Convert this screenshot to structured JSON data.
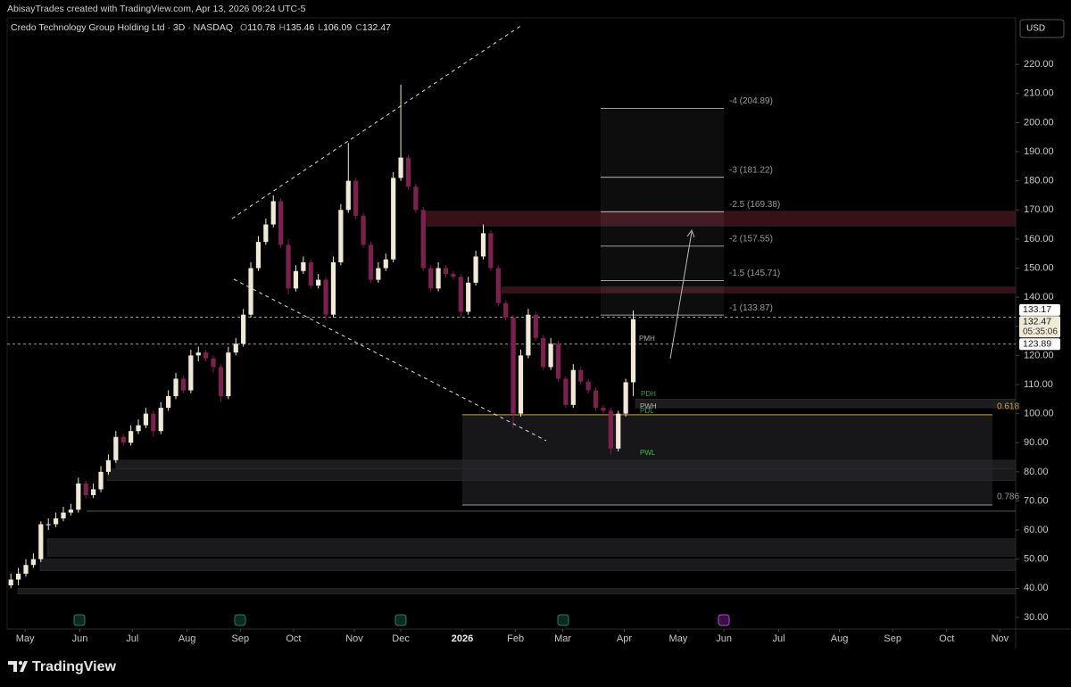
{
  "header": "AbisayTrades created with TradingView.com, Apr 13, 2026 09:24 UTC-5",
  "currency": "USD",
  "brand": "TradingView",
  "chart_data": {
    "type": "candlestick",
    "title": "Credo Technology Group Holding Ltd · 3D · NASDAQ",
    "legend": [
      {
        "label": "O",
        "value": 110.78
      },
      {
        "label": "H",
        "value": 135.46
      },
      {
        "label": "L",
        "value": 106.09
      },
      {
        "label": "C",
        "value": 132.47
      }
    ],
    "up_color": "#efe9d6",
    "down_color": "#7e1f4d",
    "open": [
      41,
      43,
      45,
      48,
      50,
      62,
      62,
      64,
      66,
      67,
      76,
      72,
      74,
      80,
      84,
      92,
      90,
      94,
      96,
      100,
      94,
      102,
      106,
      112,
      108,
      120,
      121,
      119,
      116,
      106,
      121,
      124,
      134,
      150,
      159,
      165,
      173,
      158,
      143,
      149,
      152,
      144,
      146,
      134,
      152,
      170,
      180,
      168,
      158,
      146,
      150,
      153,
      181,
      188,
      178,
      170,
      150,
      143,
      150,
      148,
      147,
      135,
      145,
      154,
      162,
      150,
      138,
      133,
      100,
      120,
      134,
      126,
      116,
      124,
      112,
      103,
      115,
      111,
      108,
      102,
      101,
      88,
      100,
      110.78
    ],
    "high": [
      45,
      47,
      50,
      52,
      63,
      64,
      66,
      68,
      69,
      78,
      77,
      76,
      82,
      86,
      94,
      93,
      96,
      98,
      102,
      101,
      104,
      108,
      114,
      113,
      122,
      123,
      122,
      120,
      117,
      123,
      126,
      136,
      152,
      161,
      167,
      175,
      174,
      160,
      151,
      154,
      153,
      148,
      147,
      154,
      172,
      193,
      181,
      169,
      159,
      152,
      155,
      183,
      213,
      189,
      179,
      171,
      151,
      152,
      151,
      149,
      148,
      147,
      156,
      165,
      163,
      151,
      139,
      134,
      122,
      136,
      135,
      127,
      126,
      125,
      113,
      117,
      116,
      112,
      109,
      103,
      102,
      101,
      112,
      135.46
    ],
    "low": [
      40,
      41,
      44,
      47,
      49,
      60,
      61,
      63,
      65,
      66,
      71,
      71,
      73,
      79,
      83,
      89,
      89,
      93,
      95,
      92,
      93,
      101,
      105,
      107,
      107,
      118,
      118,
      114,
      104,
      105,
      120,
      123,
      133,
      149,
      158,
      164,
      157,
      141,
      142,
      148,
      143,
      143,
      132,
      133,
      151,
      169,
      167,
      157,
      145,
      145,
      149,
      152,
      180,
      177,
      169,
      149,
      142,
      142,
      147,
      146,
      133,
      134,
      144,
      153,
      149,
      137,
      132,
      95,
      99,
      119,
      125,
      115,
      115,
      111,
      102,
      102,
      110,
      107,
      101,
      100,
      86,
      87,
      99,
      106.09
    ],
    "close": [
      43,
      45,
      48,
      50,
      62,
      62,
      64,
      66,
      67,
      76,
      72,
      74,
      80,
      84,
      92,
      90,
      94,
      96,
      100,
      94,
      102,
      106,
      112,
      108,
      120,
      121,
      119,
      116,
      106,
      121,
      124,
      134,
      150,
      159,
      165,
      173,
      158,
      143,
      149,
      152,
      144,
      146,
      134,
      152,
      170,
      180,
      168,
      158,
      146,
      150,
      153,
      181,
      188,
      178,
      170,
      150,
      143,
      150,
      148,
      147,
      135,
      145,
      154,
      162,
      150,
      138,
      133,
      100,
      120,
      134,
      126,
      116,
      124,
      112,
      103,
      115,
      111,
      108,
      102,
      101,
      88,
      100,
      110.78,
      132.47
    ],
    "xlim": [
      -0.5,
      134
    ],
    "xticks": [
      {
        "value": 1.9,
        "label": "May"
      },
      {
        "value": 9.2,
        "label": "Jun"
      },
      {
        "value": 16.2,
        "label": "Jul"
      },
      {
        "value": 23.5,
        "label": "Aug"
      },
      {
        "value": 30.6,
        "label": "Sep"
      },
      {
        "value": 37.7,
        "label": "Oct"
      },
      {
        "value": 45.8,
        "label": "Nov"
      },
      {
        "value": 52,
        "label": "Dec"
      },
      {
        "value": 60.2,
        "label": "2026"
      },
      {
        "value": 67.3,
        "label": "Feb"
      },
      {
        "value": 73.6,
        "label": "Mar"
      },
      {
        "value": 81.8,
        "label": "Apr"
      },
      {
        "value": 89,
        "label": "May"
      },
      {
        "value": 95.1,
        "label": "Jun"
      },
      {
        "value": 102.4,
        "label": "Jul"
      },
      {
        "value": 110.5,
        "label": "Aug"
      },
      {
        "value": 117.6,
        "label": "Sep"
      },
      {
        "value": 124.8,
        "label": "Oct"
      },
      {
        "value": 131.9,
        "label": "Nov"
      }
    ],
    "ylim": [
      26,
      236
    ],
    "yticks": [
      {
        "value": 30,
        "label": "30.00"
      },
      {
        "value": 40,
        "label": "40.00"
      },
      {
        "value": 50,
        "label": "50.00"
      },
      {
        "value": 60,
        "label": "60.00"
      },
      {
        "value": 70,
        "label": "70.00"
      },
      {
        "value": 80,
        "label": "80.00"
      },
      {
        "value": 90,
        "label": "90.00"
      },
      {
        "value": 100,
        "label": "100.00"
      },
      {
        "value": 110,
        "label": "110.00"
      },
      {
        "value": 120,
        "label": "120.00"
      },
      {
        "value": 130,
        "label": "130.00"
      },
      {
        "value": 140,
        "label": "140.00"
      },
      {
        "value": 150,
        "label": "150.00"
      },
      {
        "value": 160,
        "label": "160.00"
      },
      {
        "value": 170,
        "label": "170.00"
      },
      {
        "value": 180,
        "label": "180.00"
      },
      {
        "value": 190,
        "label": "190.00"
      },
      {
        "value": 200,
        "label": "200.00"
      },
      {
        "value": 210,
        "label": "210.00"
      },
      {
        "value": 220,
        "label": "220.00"
      }
    ],
    "price_lines": [
      {
        "value": 133.17
      },
      {
        "value": 132.47,
        "countdown": "05:35:06"
      },
      {
        "value": 123.89
      }
    ],
    "fib_extension": [
      {
        "value": 204.89,
        "label": "-4 (204.89)"
      },
      {
        "value": 181.22,
        "label": "-3 (181.22)"
      },
      {
        "value": 169.38,
        "label": "-2.5 (169.38)"
      },
      {
        "value": 157.55,
        "label": "-2 (157.55)"
      },
      {
        "value": 145.71,
        "label": "-1.5 (145.71)"
      },
      {
        "value": 133.87,
        "label": "-1 (133.87)"
      }
    ],
    "fib_retracement": [
      {
        "value": 99.6,
        "label": "0.618",
        "color": "#c9a24a"
      },
      {
        "value": 68.6,
        "label": "0.786",
        "color": "#9a9a9a"
      }
    ],
    "zones": [
      {
        "low": 164.5,
        "high": 169.5,
        "color": "#3a1018"
      },
      {
        "low": 141.5,
        "high": 143.5,
        "color": "#3a1018"
      },
      {
        "low": 102,
        "high": 105,
        "color": "#1c1c1e"
      },
      {
        "low": 81,
        "high": 84,
        "color": "#1c1c1e"
      },
      {
        "low": 77,
        "high": 81,
        "color": "#19191b"
      },
      {
        "low": 51,
        "high": 57,
        "color": "#1a1a1c"
      },
      {
        "low": 46,
        "high": 50,
        "color": "#1a1a1c"
      },
      {
        "low": 38,
        "high": 40,
        "color": "#1a1a1c"
      }
    ],
    "levels": [
      {
        "label": "PMH",
        "color": "#b0b0b0"
      },
      {
        "label": "PDH",
        "color": "#2fa04a"
      },
      {
        "label": "PWH",
        "color": "#b0b0b0"
      },
      {
        "label": "PDL",
        "color": "#2fa04a"
      },
      {
        "label": "PWL",
        "color": "#2fc04a"
      }
    ]
  }
}
